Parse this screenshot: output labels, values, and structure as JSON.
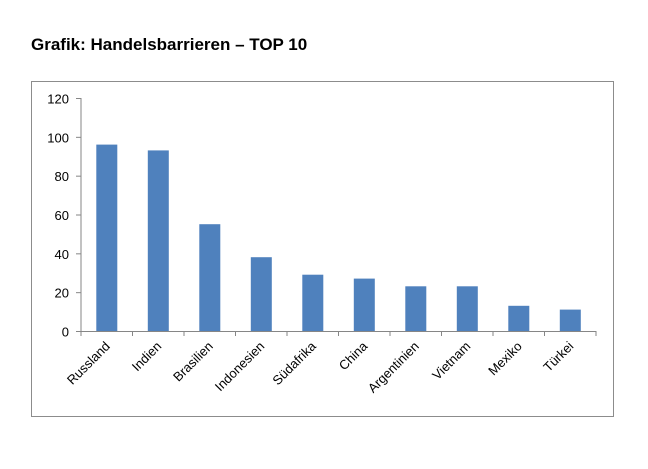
{
  "header": {
    "title": "Grafik: Handelsbarrieren – TOP 10"
  },
  "chart_data": {
    "type": "bar",
    "categories": [
      "Russland",
      "Indien",
      "Brasilien",
      "Indonesien",
      "Südafrika",
      "China",
      "Argentinien",
      "Vietnam",
      "Mexiko",
      "Türkei"
    ],
    "values": [
      96,
      93,
      55,
      38,
      29,
      27,
      23,
      23,
      13,
      11
    ],
    "title": "",
    "xlabel": "",
    "ylabel": "",
    "ylim": [
      0,
      120
    ],
    "yticks": [
      0,
      20,
      40,
      60,
      80,
      100,
      120
    ],
    "grid": false,
    "legend": "none",
    "bar_color": "#4f81bd",
    "axis_color": "#868686"
  }
}
